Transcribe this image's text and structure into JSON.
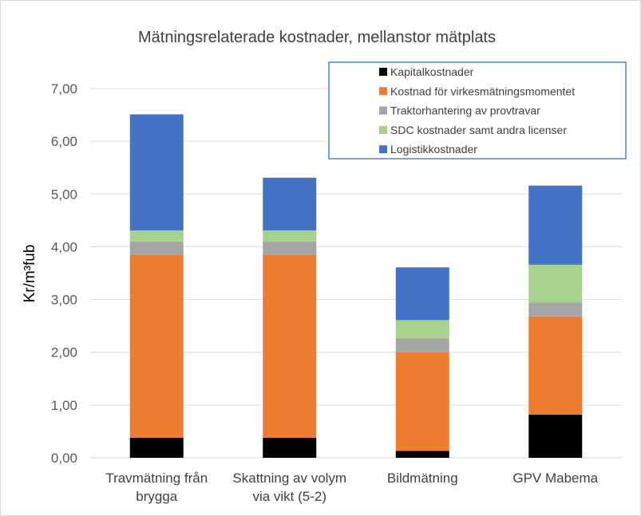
{
  "chart_data": {
    "type": "bar",
    "stacked": true,
    "title": "Mätningsrelaterade kostnader, mellanstor mätplats",
    "xlabel": "",
    "ylabel": "Kr/m³fub",
    "ylim": [
      0,
      7
    ],
    "yticks": [
      "0,00",
      "1,00",
      "2,00",
      "3,00",
      "4,00",
      "5,00",
      "6,00",
      "7,00"
    ],
    "grid": true,
    "legend_position": "top-right",
    "categories": [
      [
        "Travmätning från",
        "brygga"
      ],
      [
        "Skattning av volym",
        "via vikt (5-2)"
      ],
      [
        "Bildmätning"
      ],
      [
        "GPV Mabema"
      ]
    ],
    "series": [
      {
        "name": "Kapitalkostnader",
        "color": "#000000",
        "values": [
          0.38,
          0.38,
          0.13,
          0.82
        ]
      },
      {
        "name": "Kostnad för virkesmätningsmomentet",
        "color": "#ED7D31",
        "values": [
          3.47,
          3.47,
          1.87,
          1.86
        ]
      },
      {
        "name": "Traktorhantering av provtravar",
        "color": "#A5A5A5",
        "values": [
          0.25,
          0.25,
          0.26,
          0.26
        ]
      },
      {
        "name": "SDC kostnader samt andra licenser",
        "color": "#A9D18E",
        "values": [
          0.21,
          0.21,
          0.35,
          0.72
        ]
      },
      {
        "name": "Logistikkostnader",
        "color": "#4472C4",
        "values": [
          2.2,
          1.0,
          1.0,
          1.5
        ]
      }
    ]
  }
}
